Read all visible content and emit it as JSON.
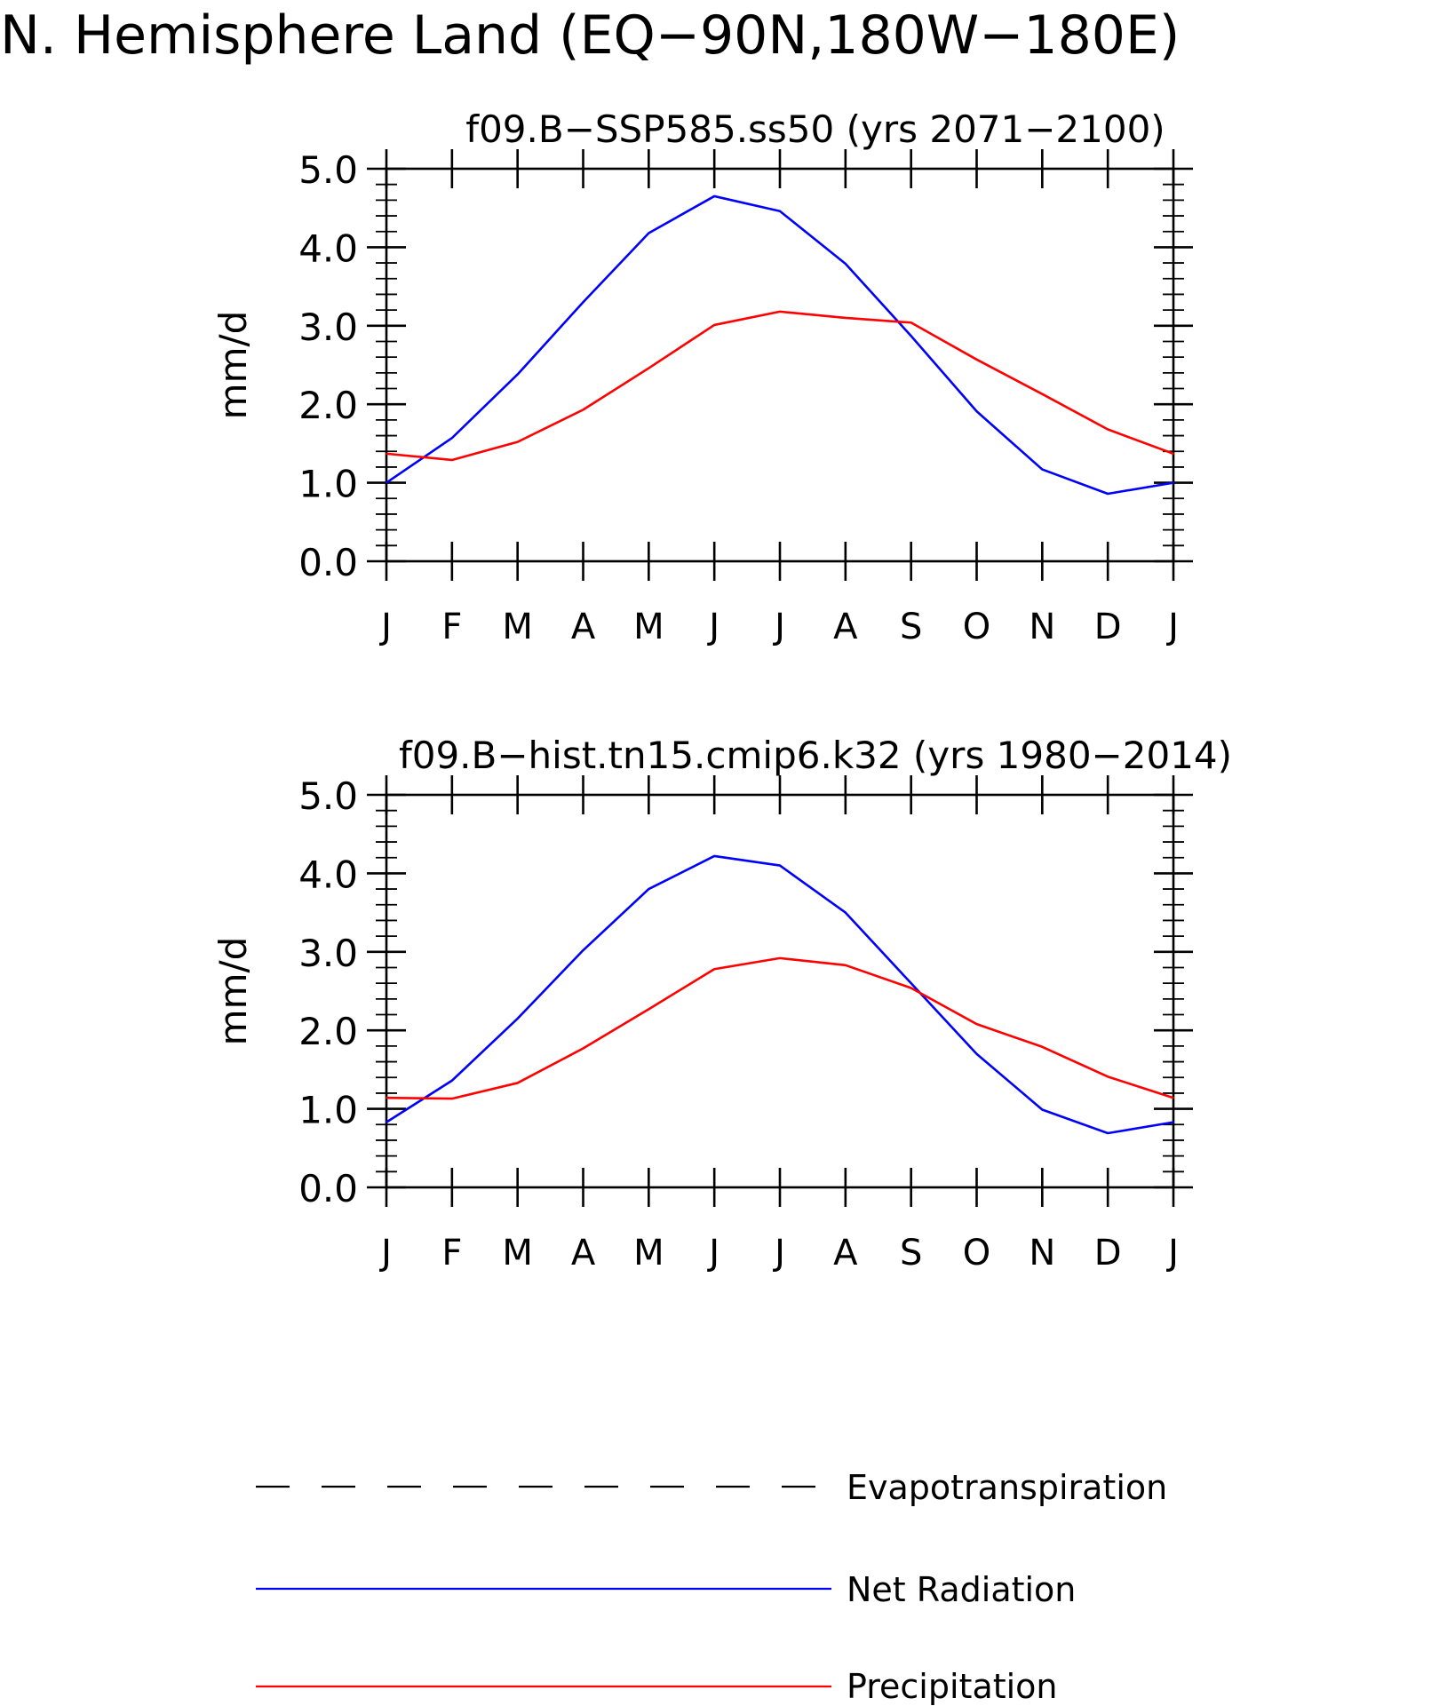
{
  "figure": {
    "title": "N. Hemisphere Land (EQ−90N,180W−180E)"
  },
  "legend": {
    "items": [
      {
        "label": "Evapotranspiration",
        "color": "#000000",
        "style": "dashed"
      },
      {
        "label": "Net Radiation",
        "color": "#0000ff",
        "style": "solid"
      },
      {
        "label": "Precipitation",
        "color": "#ff0000",
        "style": "solid"
      }
    ]
  },
  "chart_data": [
    {
      "type": "line",
      "title": "f09.B−SSP585.ss50 (yrs 2071−2100)",
      "xlabel": "",
      "ylabel": "mm/d",
      "categories": [
        "J",
        "F",
        "M",
        "A",
        "M",
        "J",
        "J",
        "A",
        "S",
        "O",
        "N",
        "D",
        "J"
      ],
      "ylim": [
        0,
        5
      ],
      "yticks": [
        "0.0",
        "1.0",
        "2.0",
        "3.0",
        "4.0",
        "5.0"
      ],
      "grid": false,
      "series": [
        {
          "name": "Net Radiation",
          "color": "#0000ff",
          "values": [
            1.0,
            1.57,
            2.38,
            3.3,
            4.18,
            4.65,
            4.46,
            3.79,
            2.87,
            1.91,
            1.17,
            0.86,
            1.0
          ]
        },
        {
          "name": "Precipitation",
          "color": "#ff0000",
          "values": [
            1.37,
            1.29,
            1.52,
            1.93,
            2.46,
            3.01,
            3.18,
            3.1,
            3.04,
            2.57,
            2.13,
            1.68,
            1.37
          ]
        }
      ]
    },
    {
      "type": "line",
      "title": "f09.B−hist.tn15.cmip6.k32 (yrs 1980−2014)",
      "xlabel": "",
      "ylabel": "mm/d",
      "categories": [
        "J",
        "F",
        "M",
        "A",
        "M",
        "J",
        "J",
        "A",
        "S",
        "O",
        "N",
        "D",
        "J"
      ],
      "ylim": [
        0,
        5
      ],
      "yticks": [
        "0.0",
        "1.0",
        "2.0",
        "3.0",
        "4.0",
        "5.0"
      ],
      "grid": false,
      "series": [
        {
          "name": "Net Radiation",
          "color": "#0000ff",
          "values": [
            0.83,
            1.36,
            2.15,
            3.02,
            3.8,
            4.22,
            4.1,
            3.5,
            2.6,
            1.7,
            0.99,
            0.69,
            0.83
          ]
        },
        {
          "name": "Precipitation",
          "color": "#ff0000",
          "values": [
            1.14,
            1.13,
            1.33,
            1.77,
            2.27,
            2.78,
            2.92,
            2.83,
            2.54,
            2.08,
            1.79,
            1.41,
            1.14
          ]
        }
      ]
    }
  ]
}
